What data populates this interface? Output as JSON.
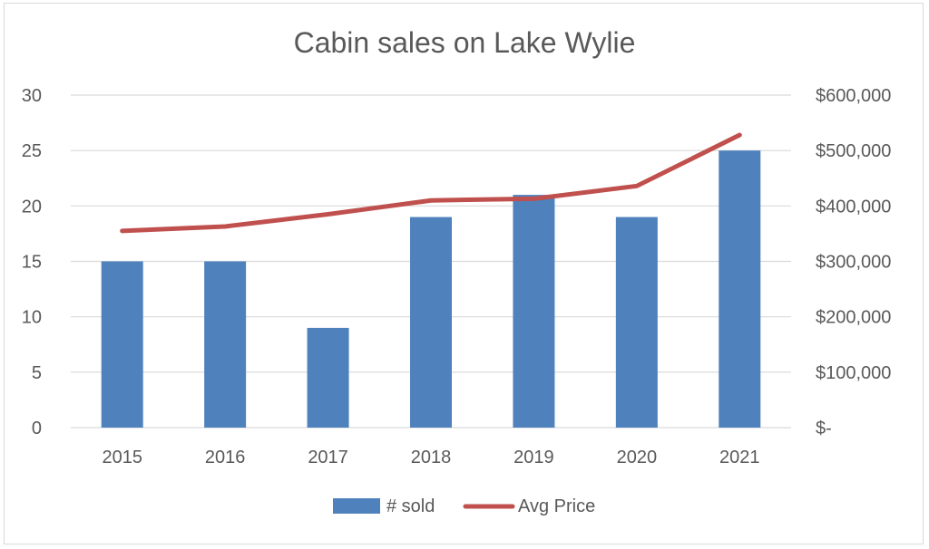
{
  "chart_data": {
    "type": "bar",
    "title": "Cabin sales on Lake Wylie",
    "categories": [
      "2015",
      "2016",
      "2017",
      "2018",
      "2019",
      "2020",
      "2021"
    ],
    "series": [
      {
        "name": "# sold",
        "type": "bar",
        "axis": "left",
        "color": "#4f81bd",
        "values": [
          15,
          15,
          9,
          19,
          21,
          19,
          25
        ]
      },
      {
        "name": "Avg Price",
        "type": "line",
        "axis": "right",
        "color": "#c0504d",
        "values": [
          355000,
          363000,
          385000,
          410000,
          413000,
          436000,
          528000
        ]
      }
    ],
    "y_left": {
      "range": [
        0,
        30
      ],
      "ticks": [
        0,
        5,
        10,
        15,
        20,
        25,
        30
      ],
      "tick_labels": [
        "0",
        "5",
        "10",
        "15",
        "20",
        "25",
        "30"
      ]
    },
    "y_right": {
      "range": [
        0,
        600000
      ],
      "ticks": [
        0,
        100000,
        200000,
        300000,
        400000,
        500000,
        600000
      ],
      "tick_labels": [
        "$-",
        "$100,000",
        "$200,000",
        "$300,000",
        "$400,000",
        "$500,000",
        "$600,000"
      ]
    },
    "grid": true,
    "legend_position": "bottom"
  }
}
